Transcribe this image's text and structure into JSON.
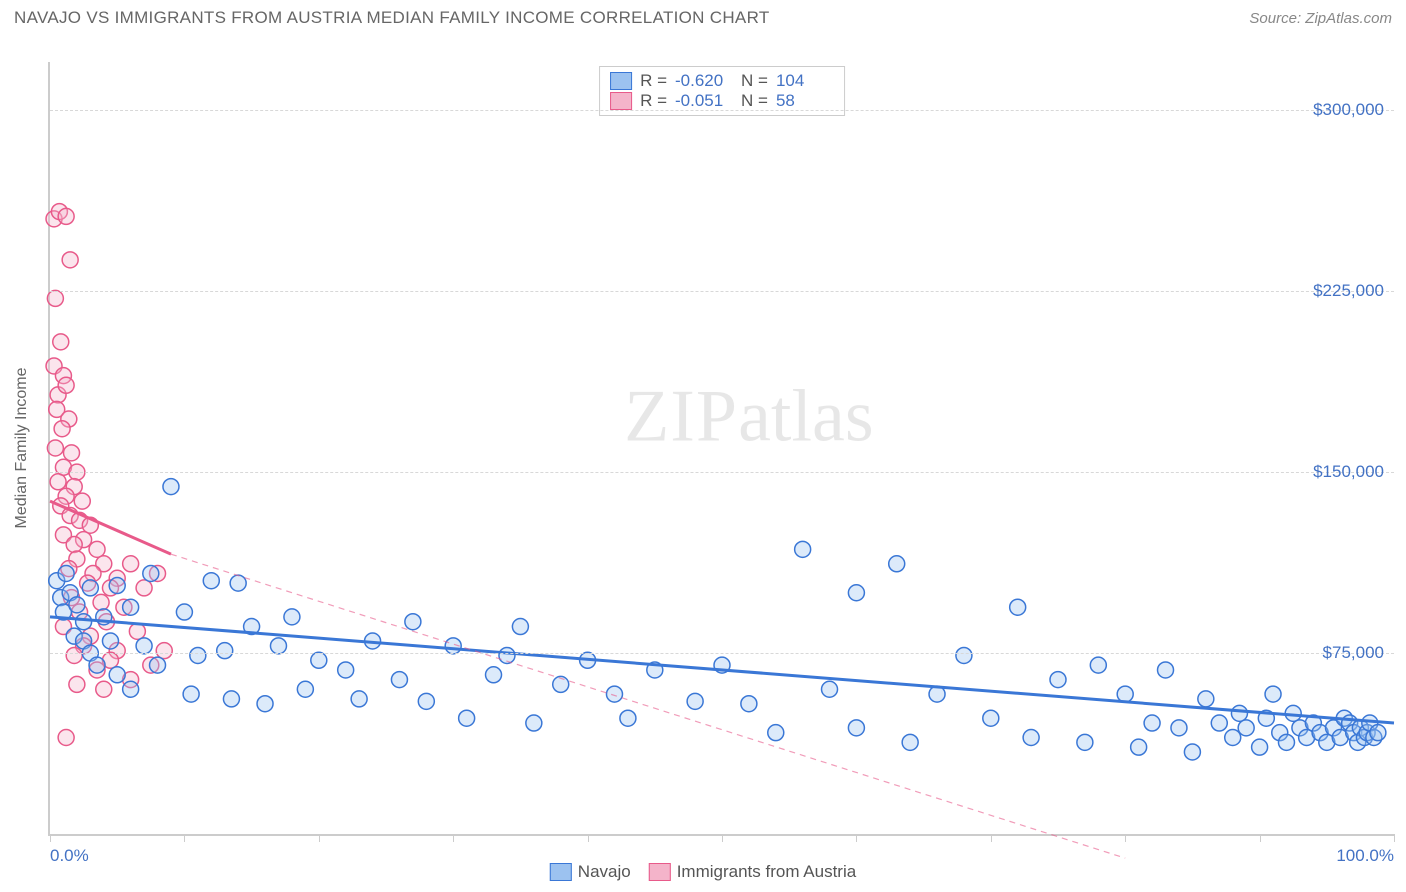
{
  "title": "NAVAJO VS IMMIGRANTS FROM AUSTRIA MEDIAN FAMILY INCOME CORRELATION CHART",
  "source_label": "Source:",
  "source_name": "ZipAtlas.com",
  "watermark": {
    "left": "ZIP",
    "right": "atlas"
  },
  "chart": {
    "type": "scatter",
    "yaxis_title": "Median Family Income",
    "background_color": "#ffffff",
    "grid_color": "#d8d8d8",
    "axis_color": "#cccccc",
    "xlim": [
      0,
      100
    ],
    "ylim": [
      0,
      320000
    ],
    "xtick_positions": [
      0,
      10,
      20,
      30,
      40,
      50,
      60,
      70,
      80,
      90,
      100
    ],
    "xtick_labels": {
      "0": "0.0%",
      "100": "100.0%"
    },
    "yticks": [
      {
        "value": 75000,
        "label": "$75,000"
      },
      {
        "value": 150000,
        "label": "$150,000"
      },
      {
        "value": 225000,
        "label": "$225,000"
      },
      {
        "value": 300000,
        "label": "$300,000"
      }
    ],
    "marker_radius": 8,
    "marker_stroke_width": 1.5,
    "marker_fill_opacity": 0.35,
    "series": [
      {
        "name": "Navajo",
        "color_stroke": "#3a77d6",
        "color_fill": "#9cc2f0",
        "R": "-0.620",
        "N": "104",
        "trend": {
          "x1": 0,
          "y1": 90000,
          "x2": 100,
          "y2": 46000,
          "stroke_width": 3,
          "dashed_extension": false
        },
        "points": [
          [
            0.5,
            105000
          ],
          [
            0.8,
            98000
          ],
          [
            1.0,
            92000
          ],
          [
            1.2,
            108000
          ],
          [
            1.5,
            100000
          ],
          [
            1.8,
            82000
          ],
          [
            2.0,
            95000
          ],
          [
            2.5,
            88000
          ],
          [
            2.5,
            80000
          ],
          [
            3.0,
            75000
          ],
          [
            3.0,
            102000
          ],
          [
            3.5,
            70000
          ],
          [
            4.0,
            90000
          ],
          [
            4.5,
            80000
          ],
          [
            5.0,
            103000
          ],
          [
            5.0,
            66000
          ],
          [
            6.0,
            94000
          ],
          [
            6.0,
            60000
          ],
          [
            7.0,
            78000
          ],
          [
            7.5,
            108000
          ],
          [
            8.0,
            70000
          ],
          [
            9.0,
            144000
          ],
          [
            10.0,
            92000
          ],
          [
            10.5,
            58000
          ],
          [
            11.0,
            74000
          ],
          [
            12.0,
            105000
          ],
          [
            13.0,
            76000
          ],
          [
            13.5,
            56000
          ],
          [
            14.0,
            104000
          ],
          [
            15.0,
            86000
          ],
          [
            16.0,
            54000
          ],
          [
            17.0,
            78000
          ],
          [
            18.0,
            90000
          ],
          [
            19.0,
            60000
          ],
          [
            20.0,
            72000
          ],
          [
            22.0,
            68000
          ],
          [
            23.0,
            56000
          ],
          [
            24.0,
            80000
          ],
          [
            26.0,
            64000
          ],
          [
            27.0,
            88000
          ],
          [
            28.0,
            55000
          ],
          [
            30.0,
            78000
          ],
          [
            31.0,
            48000
          ],
          [
            33.0,
            66000
          ],
          [
            34.0,
            74000
          ],
          [
            35.0,
            86000
          ],
          [
            36.0,
            46000
          ],
          [
            38.0,
            62000
          ],
          [
            40.0,
            72000
          ],
          [
            42.0,
            58000
          ],
          [
            43.0,
            48000
          ],
          [
            45.0,
            68000
          ],
          [
            48.0,
            55000
          ],
          [
            50.0,
            70000
          ],
          [
            52.0,
            54000
          ],
          [
            54.0,
            42000
          ],
          [
            56.0,
            118000
          ],
          [
            58.0,
            60000
          ],
          [
            60.0,
            100000
          ],
          [
            60.0,
            44000
          ],
          [
            63.0,
            112000
          ],
          [
            64.0,
            38000
          ],
          [
            66.0,
            58000
          ],
          [
            68.0,
            74000
          ],
          [
            70.0,
            48000
          ],
          [
            72.0,
            94000
          ],
          [
            73.0,
            40000
          ],
          [
            75.0,
            64000
          ],
          [
            77.0,
            38000
          ],
          [
            78.0,
            70000
          ],
          [
            80.0,
            58000
          ],
          [
            81.0,
            36000
          ],
          [
            82.0,
            46000
          ],
          [
            83.0,
            68000
          ],
          [
            84.0,
            44000
          ],
          [
            85.0,
            34000
          ],
          [
            86.0,
            56000
          ],
          [
            87.0,
            46000
          ],
          [
            88.0,
            40000
          ],
          [
            88.5,
            50000
          ],
          [
            89.0,
            44000
          ],
          [
            90.0,
            36000
          ],
          [
            90.5,
            48000
          ],
          [
            91.0,
            58000
          ],
          [
            91.5,
            42000
          ],
          [
            92.0,
            38000
          ],
          [
            92.5,
            50000
          ],
          [
            93.0,
            44000
          ],
          [
            93.5,
            40000
          ],
          [
            94.0,
            46000
          ],
          [
            94.5,
            42000
          ],
          [
            95.0,
            38000
          ],
          [
            95.5,
            44000
          ],
          [
            96.0,
            40000
          ],
          [
            96.3,
            48000
          ],
          [
            96.7,
            46000
          ],
          [
            97.0,
            42000
          ],
          [
            97.3,
            38000
          ],
          [
            97.5,
            44000
          ],
          [
            97.8,
            40000
          ],
          [
            98.0,
            42000
          ],
          [
            98.2,
            46000
          ],
          [
            98.5,
            40000
          ],
          [
            98.8,
            42000
          ]
        ]
      },
      {
        "name": "Immigrants from Austria",
        "color_stroke": "#e85a8a",
        "color_fill": "#f4b4ca",
        "R": "-0.051",
        "N": "58",
        "trend": {
          "x1": 0,
          "y1": 138000,
          "x2": 9,
          "y2": 116000,
          "stroke_width": 3,
          "dashed_extension": true,
          "dash_x2": 80,
          "dash_y2": -10000
        },
        "points": [
          [
            0.3,
            255000
          ],
          [
            0.7,
            258000
          ],
          [
            1.2,
            256000
          ],
          [
            1.5,
            238000
          ],
          [
            0.4,
            222000
          ],
          [
            0.8,
            204000
          ],
          [
            0.3,
            194000
          ],
          [
            1.0,
            190000
          ],
          [
            0.6,
            182000
          ],
          [
            1.2,
            186000
          ],
          [
            0.5,
            176000
          ],
          [
            1.4,
            172000
          ],
          [
            0.9,
            168000
          ],
          [
            0.4,
            160000
          ],
          [
            1.6,
            158000
          ],
          [
            1.0,
            152000
          ],
          [
            2.0,
            150000
          ],
          [
            0.6,
            146000
          ],
          [
            1.8,
            144000
          ],
          [
            1.2,
            140000
          ],
          [
            2.4,
            138000
          ],
          [
            0.8,
            136000
          ],
          [
            1.5,
            132000
          ],
          [
            2.2,
            130000
          ],
          [
            3.0,
            128000
          ],
          [
            1.0,
            124000
          ],
          [
            2.5,
            122000
          ],
          [
            1.8,
            120000
          ],
          [
            3.5,
            118000
          ],
          [
            2.0,
            114000
          ],
          [
            4.0,
            112000
          ],
          [
            1.4,
            110000
          ],
          [
            3.2,
            108000
          ],
          [
            5.0,
            106000
          ],
          [
            2.8,
            104000
          ],
          [
            4.5,
            102000
          ],
          [
            6.0,
            112000
          ],
          [
            1.6,
            98000
          ],
          [
            3.8,
            96000
          ],
          [
            5.5,
            94000
          ],
          [
            2.2,
            92000
          ],
          [
            7.0,
            102000
          ],
          [
            4.2,
            88000
          ],
          [
            1.0,
            86000
          ],
          [
            6.5,
            84000
          ],
          [
            3.0,
            82000
          ],
          [
            8.0,
            108000
          ],
          [
            2.5,
            78000
          ],
          [
            5.0,
            76000
          ],
          [
            1.8,
            74000
          ],
          [
            4.5,
            72000
          ],
          [
            7.5,
            70000
          ],
          [
            3.5,
            68000
          ],
          [
            1.2,
            40000
          ],
          [
            6.0,
            64000
          ],
          [
            2.0,
            62000
          ],
          [
            4.0,
            60000
          ],
          [
            8.5,
            76000
          ]
        ]
      }
    ],
    "legend": {
      "stats_labels": {
        "R": "R =",
        "N": "N ="
      },
      "bottom_items": [
        "Navajo",
        "Immigrants from Austria"
      ]
    }
  }
}
